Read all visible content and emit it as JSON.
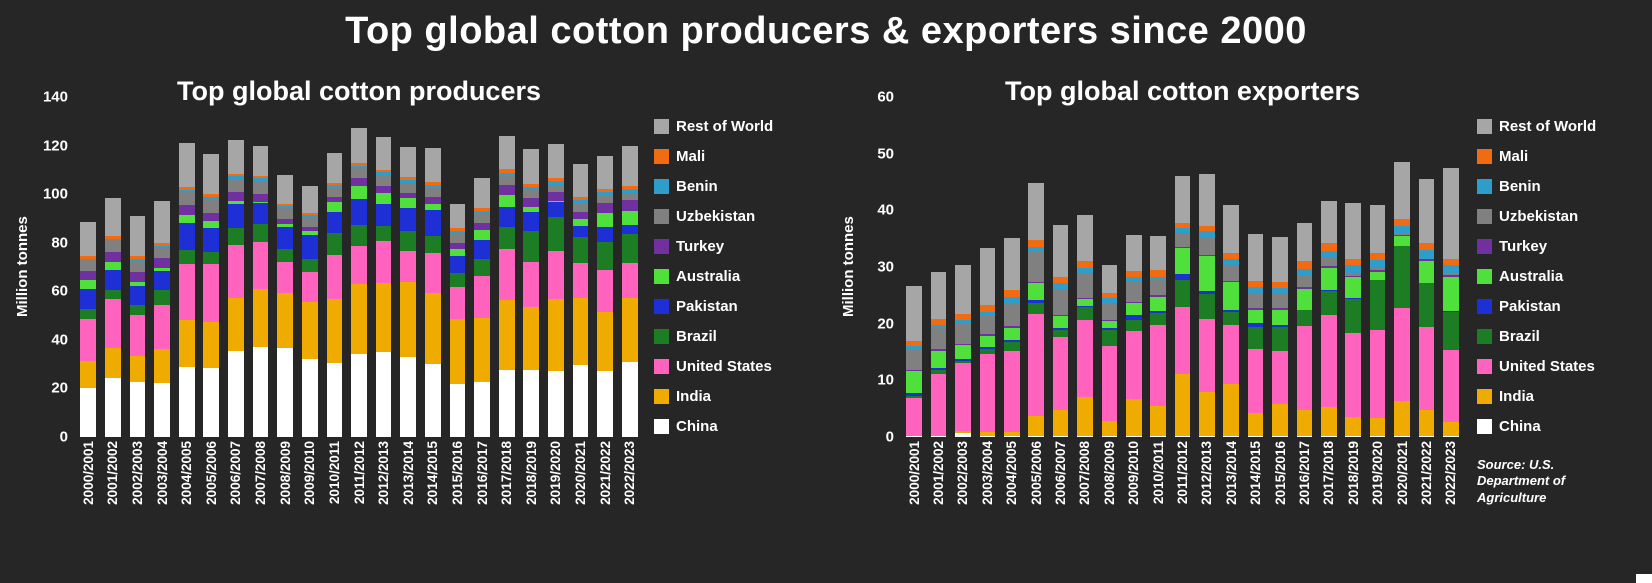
{
  "page": {
    "title": "Top global cotton producers & exporters since 2000",
    "source_note": "Source: U.S. Department of Agriculture",
    "background": "#262626"
  },
  "chart_data": [
    {
      "type": "bar",
      "stacked": true,
      "title": "Top global cotton producers",
      "ylabel": "Million tonnes",
      "ylim": [
        0,
        140
      ],
      "yticks": [
        0,
        20,
        40,
        60,
        80,
        100,
        120,
        140
      ],
      "grid": false,
      "legend_position": "right",
      "categories": [
        "2000/2001",
        "2001/2002",
        "2002/2003",
        "2003/2004",
        "2004/2005",
        "2005/2006",
        "2006/2007",
        "2007/2008",
        "2008/2009",
        "2009/2010",
        "2010/2011",
        "2011/2012",
        "2012/2013",
        "2013/2014",
        "2014/2015",
        "2015/2016",
        "2016/2017",
        "2017/2018",
        "2018/2019",
        "2019/2020",
        "2020/2021",
        "2021/2022",
        "2022/2023"
      ],
      "series": [
        {
          "name": "China",
          "color": "#ffffff",
          "values": [
            20.3,
            24.4,
            22.6,
            22.3,
            29.0,
            28.4,
            35.5,
            37.0,
            36.7,
            32.0,
            30.5,
            34.0,
            35.0,
            32.8,
            30.0,
            22.0,
            22.6,
            27.5,
            27.8,
            27.3,
            29.5,
            27.0,
            30.7
          ]
        },
        {
          "name": "India",
          "color": "#f0ab00",
          "values": [
            10.9,
            12.3,
            10.6,
            13.8,
            19.0,
            19.1,
            21.8,
            24.0,
            22.6,
            23.8,
            26.4,
            29.0,
            28.5,
            31.0,
            29.5,
            26.8,
            26.5,
            29.0,
            25.8,
            29.5,
            27.6,
            24.3,
            26.5
          ]
        },
        {
          "name": "United States",
          "color": "#ff63be",
          "values": [
            17.2,
            20.3,
            17.2,
            18.3,
            23.3,
            23.9,
            21.6,
            19.2,
            12.8,
            12.2,
            18.1,
            15.6,
            17.3,
            12.9,
            16.3,
            12.9,
            17.2,
            20.9,
            18.4,
            19.9,
            14.6,
            17.5,
            14.5
          ]
        },
        {
          "name": "Brazil",
          "color": "#1d7d24",
          "values": [
            4.3,
            3.5,
            3.9,
            6.0,
            5.9,
            4.7,
            7.0,
            7.4,
            5.5,
            5.5,
            9.0,
            8.7,
            6.0,
            8.0,
            7.1,
            5.9,
            7.0,
            9.2,
            13.0,
            13.8,
            10.8,
            11.7,
            11.9
          ]
        },
        {
          "name": "Pakistan",
          "color": "#1f2fd6",
          "values": [
            8.3,
            8.3,
            8.0,
            7.8,
            11.1,
            9.9,
            9.9,
            8.6,
            8.7,
            9.6,
            8.6,
            10.6,
            9.3,
            9.5,
            10.6,
            7.0,
            7.7,
            8.2,
            7.6,
            6.2,
            4.5,
            6.0,
            3.9
          ]
        },
        {
          "name": "Australia",
          "color": "#50e03c",
          "values": [
            3.7,
            3.3,
            1.7,
            1.5,
            3.0,
            2.8,
            1.4,
            0.6,
            1.5,
            1.8,
            4.2,
            5.5,
            4.6,
            4.1,
            2.3,
            2.9,
            4.1,
            4.8,
            2.2,
            0.6,
            2.8,
            5.9,
            5.5
          ]
        },
        {
          "name": "Turkey",
          "color": "#7030a0",
          "values": [
            3.6,
            4.0,
            4.1,
            4.0,
            4.2,
            3.5,
            3.8,
            3.1,
            1.9,
            1.8,
            2.1,
            3.4,
            2.6,
            2.3,
            3.2,
            2.6,
            3.2,
            4.0,
            3.7,
            3.4,
            2.9,
            3.8,
            4.6
          ]
        },
        {
          "name": "Uzbekistan",
          "color": "#808080",
          "values": [
            4.4,
            4.9,
            4.6,
            4.1,
            5.2,
            5.6,
            5.4,
            5.4,
            4.6,
            3.9,
            4.1,
            4.2,
            4.6,
            4.2,
            3.9,
            3.8,
            3.6,
            4.0,
            3.3,
            3.2,
            3.5,
            3.2,
            3.1
          ]
        },
        {
          "name": "Benin",
          "color": "#2e9dc9",
          "values": [
            0.6,
            0.6,
            0.7,
            0.8,
            1.0,
            0.9,
            1.1,
            1.2,
            0.9,
            0.7,
            0.6,
            0.8,
            1.1,
            1.1,
            1.1,
            1.0,
            1.1,
            1.2,
            1.3,
            1.4,
            1.4,
            1.5,
            1.6
          ]
        },
        {
          "name": "Mali",
          "color": "#f06b12",
          "values": [
            1.1,
            1.1,
            1.0,
            1.2,
            1.2,
            1.2,
            1.0,
            1.1,
            0.9,
            1.0,
            1.1,
            0.9,
            1.0,
            1.1,
            1.2,
            1.1,
            1.3,
            1.4,
            1.2,
            1.3,
            1.1,
            1.2,
            1.2
          ]
        },
        {
          "name": "Rest of World",
          "color": "#a6a6a6",
          "values": [
            14.0,
            15.6,
            16.6,
            17.5,
            18.2,
            16.5,
            13.7,
            12.2,
            11.7,
            11.1,
            12.4,
            14.6,
            13.7,
            12.3,
            13.9,
            10.0,
            12.3,
            13.6,
            14.3,
            14.0,
            13.8,
            13.5,
            16.5
          ]
        }
      ]
    },
    {
      "type": "bar",
      "stacked": true,
      "title": "Top global cotton exporters",
      "ylabel": "Million tonnes",
      "ylim": [
        0,
        60
      ],
      "yticks": [
        0,
        10,
        20,
        30,
        40,
        50,
        60
      ],
      "grid": false,
      "legend_position": "right",
      "categories": [
        "2000/2001",
        "2001/2002",
        "2002/2003",
        "2003/2004",
        "2004/2005",
        "2005/2006",
        "2006/2007",
        "2007/2008",
        "2008/2009",
        "2009/2010",
        "2010/2011",
        "2011/2012",
        "2012/2013",
        "2013/2014",
        "2014/2015",
        "2015/2016",
        "2016/2017",
        "2017/2018",
        "2018/2019",
        "2019/2020",
        "2020/2021",
        "2021/2022",
        "2022/2023"
      ],
      "series": [
        {
          "name": "China",
          "color": "#ffffff",
          "values": [
            0.1,
            0.1,
            0.7,
            0.2,
            0.1,
            0.1,
            0.1,
            0.1,
            0.1,
            0.1,
            0.1,
            0.1,
            0.1,
            0.1,
            0.1,
            0.1,
            0.1,
            0.1,
            0.1,
            0.1,
            0.1,
            0.1,
            0.1
          ]
        },
        {
          "name": "India",
          "color": "#f0ab00",
          "values": [
            0.1,
            0.1,
            0.4,
            0.6,
            0.7,
            3.6,
            4.6,
            7.0,
            2.7,
            6.6,
            5.3,
            11.1,
            7.8,
            9.2,
            4.2,
            5.8,
            4.6,
            5.2,
            3.5,
            3.2,
            6.2,
            4.7,
            2.5
          ]
        },
        {
          "name": "United States",
          "color": "#ff63be",
          "values": [
            6.7,
            11.0,
            11.9,
            13.8,
            14.4,
            18.0,
            13.0,
            13.6,
            13.3,
            12.0,
            14.4,
            11.7,
            13.0,
            10.5,
            11.2,
            9.2,
            14.9,
            16.3,
            14.8,
            15.5,
            16.4,
            14.6,
            12.8
          ]
        },
        {
          "name": "Brazil",
          "color": "#1d7d24",
          "values": [
            0.3,
            0.7,
            0.5,
            1.0,
            1.6,
            2.0,
            1.2,
            2.2,
            2.7,
            2.0,
            2.0,
            4.8,
            4.3,
            2.2,
            3.9,
            4.3,
            2.8,
            4.2,
            6.0,
            8.9,
            11.0,
            7.7,
            6.7
          ]
        },
        {
          "name": "Pakistan",
          "color": "#1f2fd6",
          "values": [
            0.6,
            0.2,
            0.2,
            0.3,
            0.4,
            0.5,
            0.3,
            0.2,
            0.5,
            0.8,
            0.5,
            1.0,
            0.6,
            0.5,
            0.7,
            0.3,
            0.1,
            0.2,
            0.2,
            0.1,
            0.1,
            0.1,
            0.1
          ]
        },
        {
          "name": "Australia",
          "color": "#50e03c",
          "values": [
            3.9,
            3.1,
            2.6,
            2.0,
            2.1,
            2.9,
            2.2,
            1.2,
            1.2,
            2.1,
            2.5,
            4.6,
            6.1,
            4.9,
            2.4,
            2.8,
            3.7,
            3.9,
            3.6,
            1.4,
            1.6,
            3.9,
            6.1
          ]
        },
        {
          "name": "Turkey",
          "color": "#7030a0",
          "values": [
            0.2,
            0.3,
            0.2,
            0.3,
            0.3,
            0.2,
            0.2,
            0.2,
            0.2,
            0.2,
            0.2,
            0.3,
            0.3,
            0.2,
            0.3,
            0.3,
            0.3,
            0.3,
            0.3,
            0.3,
            0.3,
            0.3,
            0.3
          ]
        },
        {
          "name": "Uzbekistan",
          "color": "#808080",
          "values": [
            3.5,
            3.7,
            3.5,
            3.1,
            4.1,
            5.3,
            4.5,
            4.2,
            3.0,
            3.8,
            2.7,
            2.5,
            3.0,
            2.7,
            2.5,
            2.5,
            2.1,
            1.4,
            0.5,
            0.3,
            0.2,
            0.1,
            0.1
          ]
        },
        {
          "name": "Benin",
          "color": "#2e9dc9",
          "values": [
            0.6,
            0.6,
            0.7,
            0.8,
            1.0,
            0.9,
            1.1,
            1.2,
            0.9,
            0.7,
            0.6,
            0.8,
            1.1,
            1.1,
            1.1,
            1.0,
            1.1,
            1.2,
            1.3,
            1.4,
            1.4,
            1.5,
            1.6
          ]
        },
        {
          "name": "Mali",
          "color": "#f06b12",
          "values": [
            1.0,
            1.1,
            1.0,
            1.2,
            1.2,
            1.2,
            1.0,
            1.1,
            0.9,
            1.0,
            1.1,
            0.9,
            1.0,
            1.1,
            1.2,
            1.1,
            1.3,
            1.4,
            1.2,
            1.3,
            1.1,
            1.2,
            1.2
          ]
        },
        {
          "name": "Rest of World",
          "color": "#a6a6a6",
          "values": [
            9.6,
            8.2,
            8.6,
            10.0,
            9.2,
            10.2,
            9.3,
            8.2,
            4.8,
            6.3,
            6.0,
            8.3,
            9.1,
            8.4,
            8.3,
            7.9,
            6.8,
            7.4,
            9.8,
            8.5,
            10.1,
            11.3,
            16.0
          ]
        }
      ]
    }
  ]
}
